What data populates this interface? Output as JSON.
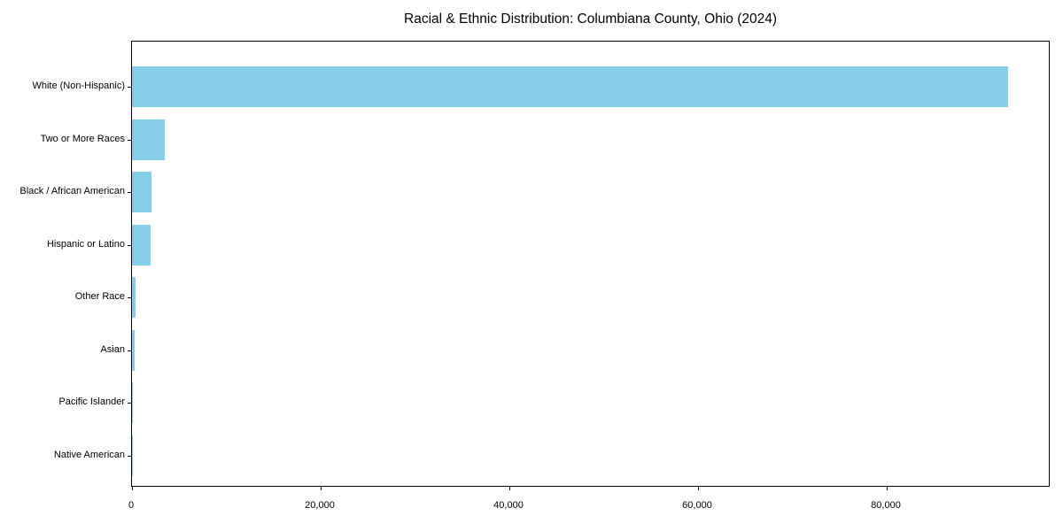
{
  "chart_data": {
    "type": "bar",
    "orientation": "horizontal",
    "title": "Racial & Ethnic Distribution: Columbiana County, Ohio (2024)",
    "categories": [
      "White (Non-Hispanic)",
      "Two or More Races",
      "Black / African American",
      "Hispanic or Latino",
      "Other Race",
      "Asian",
      "Pacific Islander",
      "Native American"
    ],
    "values": [
      92900,
      3500,
      2050,
      2000,
      400,
      300,
      40,
      20
    ],
    "xlabel": "",
    "ylabel": "",
    "xlim": [
      0,
      97370
    ],
    "x_ticks": [
      0,
      20000,
      40000,
      60000,
      80000
    ],
    "x_tick_labels": [
      "0",
      "20,000",
      "40,000",
      "60,000",
      "80,000"
    ],
    "bar_color": "#87CEEB",
    "axis_color": "#000000",
    "background_color": "#ffffff",
    "grid": false,
    "legend": null
  }
}
